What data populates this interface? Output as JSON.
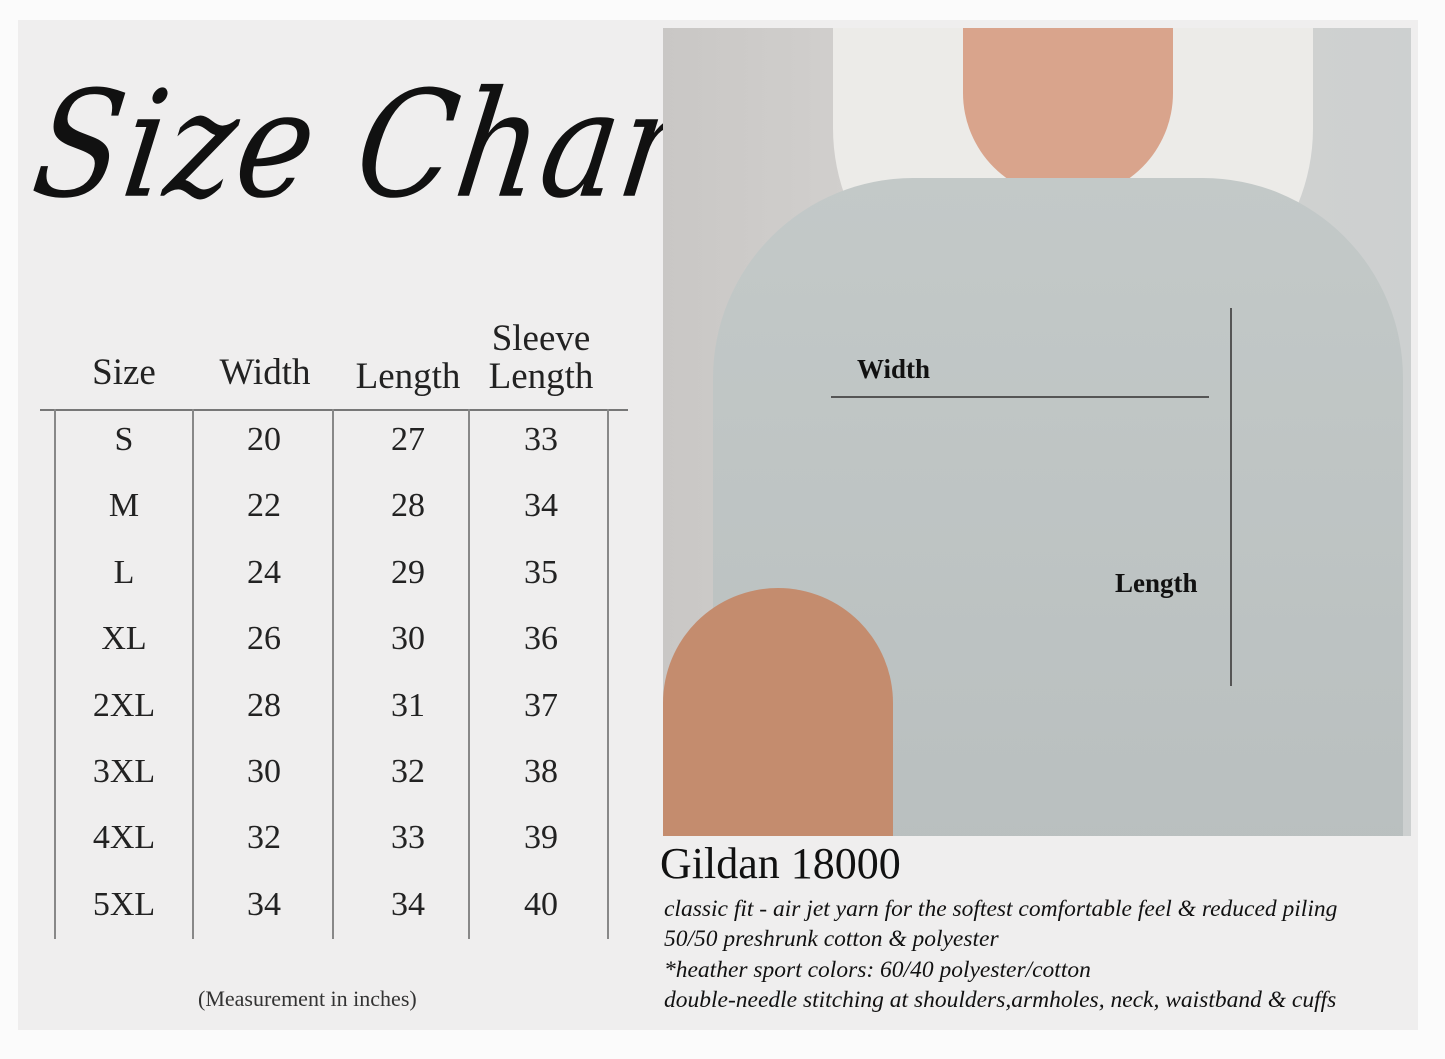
{
  "title": "Size Chart",
  "table": {
    "headers": [
      "Size",
      "Width",
      "Length",
      "Sleeve Length"
    ],
    "sleeve_header_lines": [
      "Sleeve",
      "Length"
    ],
    "rows": [
      [
        "S",
        "20",
        "27",
        "33"
      ],
      [
        "M",
        "22",
        "28",
        "34"
      ],
      [
        "L",
        "24",
        "29",
        "35"
      ],
      [
        "XL",
        "26",
        "30",
        "36"
      ],
      [
        "2XL",
        "28",
        "31",
        "37"
      ],
      [
        "3XL",
        "30",
        "32",
        "38"
      ],
      [
        "4XL",
        "32",
        "33",
        "39"
      ],
      [
        "5XL",
        "34",
        "34",
        "40"
      ]
    ],
    "note": "(Measurement in inches)"
  },
  "photo": {
    "width_label": "Width",
    "length_label": "Length"
  },
  "product": {
    "name": "Gildan 18000",
    "details": [
      "classic fit - air jet yarn for the softest comfortable feel & reduced piling",
      "50/50 preshrunk cotton & polyester",
      "*heather sport colors: 60/40 polyester/cotton",
      "double-needle stitching at shoulders,armholes, neck, waistband & cuffs"
    ]
  }
}
